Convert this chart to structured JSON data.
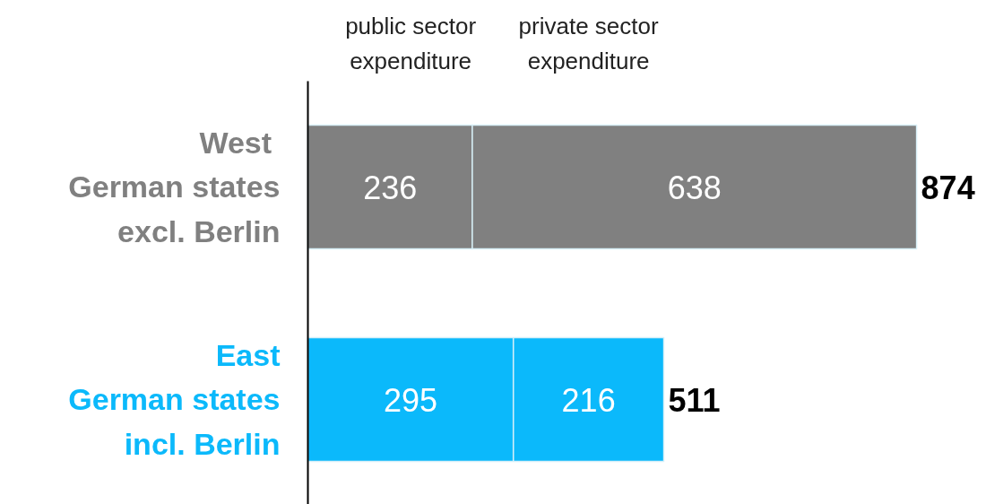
{
  "chart_data": {
    "type": "bar",
    "orientation": "horizontal",
    "stacked": true,
    "categories": [
      "West \nGerman states\nexcl. Berlin",
      "East\nGerman states\nincl. Berlin"
    ],
    "series": [
      {
        "name": "public sector\nexpenditure",
        "colors": [
          "#808080",
          "#0bb9fb"
        ],
        "values": [
          236,
          295
        ]
      },
      {
        "name": "private sector\nexpenditure",
        "colors": [
          "#808080",
          "#0bb9fb"
        ],
        "values": [
          638,
          216
        ]
      }
    ],
    "data_labels": true,
    "totals": [
      "874",
      "511"
    ],
    "legend": "top",
    "tick_labels": "y",
    "grid": false
  }
}
